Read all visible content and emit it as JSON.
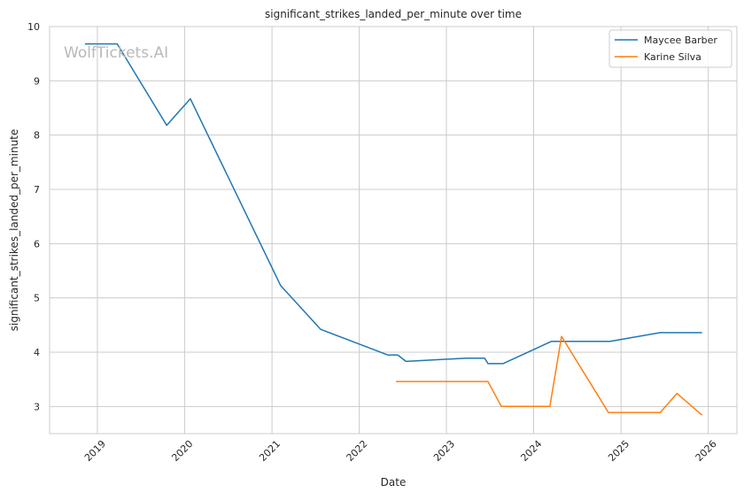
{
  "chart_data": {
    "type": "line",
    "title": "significant_strikes_landed_per_minute over time",
    "xlabel": "Date",
    "ylabel": "significant_strikes_landed_per_minute",
    "watermark": "WolfTickets.AI",
    "x_ticks": [
      "2019",
      "2020",
      "2021",
      "2022",
      "2023",
      "2024",
      "2025",
      "2026"
    ],
    "y_ticks": [
      "3",
      "4",
      "5",
      "6",
      "7",
      "8",
      "9",
      "10"
    ],
    "xlim": [
      "2018-06-15",
      "2026-05-01"
    ],
    "ylim": [
      2.5,
      10
    ],
    "grid": true,
    "legend_position": "top-right",
    "series": [
      {
        "name": "Maycee Barber",
        "color": "#1f77b4",
        "points": [
          [
            "2018-11-10",
            9.68
          ],
          [
            "2019-03-25",
            9.68
          ],
          [
            "2019-10-18",
            8.18
          ],
          [
            "2020-01-25",
            8.67
          ],
          [
            "2021-02-06",
            5.23
          ],
          [
            "2021-07-24",
            4.42
          ],
          [
            "2022-04-30",
            3.95
          ],
          [
            "2022-06-11",
            3.95
          ],
          [
            "2022-07-16",
            3.83
          ],
          [
            "2023-03-25",
            3.89
          ],
          [
            "2023-06-10",
            3.89
          ],
          [
            "2023-06-24",
            3.79
          ],
          [
            "2023-08-26",
            3.79
          ],
          [
            "2024-03-16",
            4.2
          ],
          [
            "2024-07-13",
            4.2
          ],
          [
            "2024-11-16",
            4.2
          ],
          [
            "2025-06-14",
            4.36
          ],
          [
            "2025-12-06",
            4.36
          ]
        ]
      },
      {
        "name": "Karine Silva",
        "color": "#ff7f0e",
        "points": [
          [
            "2022-06-04",
            3.46
          ],
          [
            "2023-06-24",
            3.46
          ],
          [
            "2023-08-19",
            3.0
          ],
          [
            "2024-03-09",
            3.0
          ],
          [
            "2024-04-27",
            4.29
          ],
          [
            "2024-11-09",
            2.89
          ],
          [
            "2025-06-14",
            2.89
          ],
          [
            "2025-08-23",
            3.24
          ],
          [
            "2025-12-06",
            2.84
          ]
        ]
      }
    ]
  }
}
